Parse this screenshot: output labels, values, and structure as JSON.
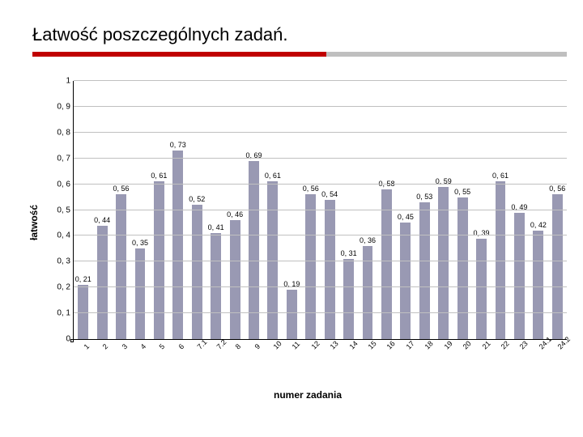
{
  "title": "Łatwość poszczególnych zadań.",
  "underline": {
    "red": "#c00000",
    "gray": "#bfbfbf",
    "red_width_pct": 55
  },
  "chart": {
    "type": "bar",
    "ylabel": "łatwość",
    "xlabel": "numer zadania",
    "ylim": [
      0,
      1
    ],
    "ytick_step": 0.1,
    "yticks": [
      "0",
      "0, 1",
      "0, 2",
      "0, 3",
      "0, 4",
      "0, 5",
      "0, 6",
      "0, 7",
      "0, 8",
      "0, 9",
      "1"
    ],
    "bar_color": "#9999b3",
    "grid_color": "#c0c0c0",
    "bg": "#ffffff",
    "label_fontsize": 9,
    "categories": [
      "1",
      "2",
      "3",
      "4",
      "5",
      "6",
      "7.1",
      "7.2",
      "8",
      "9",
      "10",
      "11",
      "12",
      "13",
      "14",
      "15",
      "16",
      "17",
      "18",
      "19",
      "20",
      "21",
      "22",
      "23",
      "24.1",
      "24.2"
    ],
    "values": [
      0.21,
      0.44,
      0.56,
      0.35,
      0.61,
      0.73,
      0.52,
      0.41,
      0.46,
      0.69,
      0.61,
      0.19,
      0.56,
      0.54,
      0.31,
      0.36,
      0.58,
      0.45,
      0.53,
      0.59,
      0.55,
      0.39,
      0.61,
      0.49,
      0.42,
      0.56
    ],
    "value_labels": [
      "0, 21",
      "0, 44",
      "0, 56",
      "0, 35",
      "0, 61",
      "0, 73",
      "0, 52",
      "0, 41",
      "0, 46",
      "0, 69",
      "0, 61",
      "0, 19",
      "0, 56",
      "0, 54",
      "0, 31",
      "0, 36",
      "0, 58",
      "0, 45",
      "0, 53",
      "0, 59",
      "0, 55",
      "0, 39",
      "0, 61",
      "0, 49",
      "0, 42",
      "0, 56"
    ]
  }
}
